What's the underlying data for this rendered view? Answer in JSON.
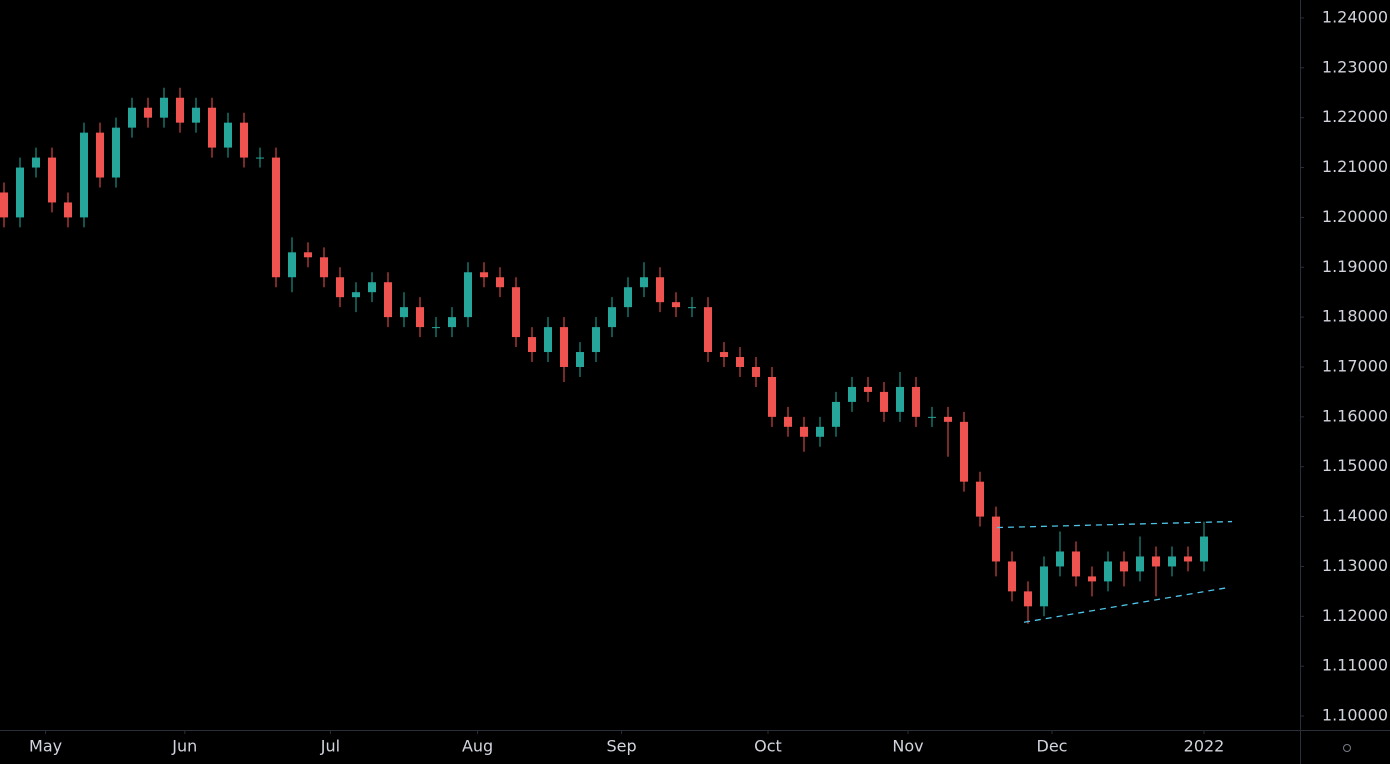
{
  "chart_data": {
    "type": "candlestick",
    "x": [
      0,
      1,
      2,
      3,
      4,
      5,
      6,
      7,
      8,
      9,
      10,
      11,
      12,
      13,
      14,
      15,
      16,
      17,
      18,
      19,
      20,
      21,
      22,
      23,
      24,
      25,
      26,
      27,
      28,
      29,
      30,
      31,
      32,
      33,
      34,
      35,
      36,
      37,
      38,
      39,
      40,
      41,
      42,
      43,
      44,
      45,
      46,
      47,
      48,
      49,
      50,
      51,
      52,
      53,
      54,
      55,
      56,
      57,
      58,
      59,
      60,
      61,
      62,
      63,
      64,
      65,
      66,
      67,
      68,
      69,
      70,
      71,
      72,
      73,
      74,
      75
    ],
    "open": [
      1.205,
      1.2,
      1.21,
      1.212,
      1.203,
      1.2,
      1.217,
      1.208,
      1.218,
      1.222,
      1.22,
      1.224,
      1.219,
      1.222,
      1.214,
      1.219,
      1.212,
      1.212,
      1.188,
      1.193,
      1.192,
      1.188,
      1.184,
      1.185,
      1.187,
      1.18,
      1.182,
      1.178,
      1.178,
      1.18,
      1.189,
      1.188,
      1.186,
      1.176,
      1.173,
      1.178,
      1.17,
      1.173,
      1.178,
      1.182,
      1.186,
      1.188,
      1.183,
      1.182,
      1.182,
      1.173,
      1.172,
      1.17,
      1.168,
      1.16,
      1.158,
      1.156,
      1.158,
      1.163,
      1.166,
      1.165,
      1.161,
      1.166,
      1.16,
      1.16,
      1.159,
      1.147,
      1.14,
      1.131,
      1.125,
      1.122,
      1.13,
      1.133,
      1.128,
      1.127,
      1.131,
      1.129,
      1.132,
      1.13,
      1.132,
      1.131
    ],
    "high": [
      1.207,
      1.212,
      1.214,
      1.214,
      1.205,
      1.219,
      1.219,
      1.22,
      1.224,
      1.224,
      1.226,
      1.226,
      1.224,
      1.224,
      1.221,
      1.221,
      1.214,
      1.214,
      1.196,
      1.195,
      1.194,
      1.19,
      1.187,
      1.189,
      1.189,
      1.185,
      1.184,
      1.18,
      1.182,
      1.191,
      1.191,
      1.19,
      1.188,
      1.178,
      1.18,
      1.18,
      1.175,
      1.18,
      1.184,
      1.188,
      1.191,
      1.19,
      1.185,
      1.184,
      1.184,
      1.175,
      1.174,
      1.172,
      1.17,
      1.162,
      1.16,
      1.16,
      1.165,
      1.168,
      1.168,
      1.167,
      1.169,
      1.168,
      1.162,
      1.162,
      1.161,
      1.149,
      1.142,
      1.133,
      1.127,
      1.132,
      1.137,
      1.135,
      1.13,
      1.133,
      1.133,
      1.136,
      1.134,
      1.134,
      1.134,
      1.139
    ],
    "low": [
      1.198,
      1.198,
      1.208,
      1.201,
      1.198,
      1.198,
      1.206,
      1.206,
      1.216,
      1.218,
      1.218,
      1.217,
      1.217,
      1.212,
      1.212,
      1.21,
      1.21,
      1.186,
      1.185,
      1.19,
      1.186,
      1.182,
      1.181,
      1.183,
      1.178,
      1.178,
      1.176,
      1.176,
      1.176,
      1.178,
      1.186,
      1.184,
      1.174,
      1.171,
      1.171,
      1.167,
      1.168,
      1.171,
      1.176,
      1.18,
      1.184,
      1.181,
      1.18,
      1.18,
      1.171,
      1.17,
      1.168,
      1.166,
      1.158,
      1.156,
      1.153,
      1.154,
      1.156,
      1.161,
      1.163,
      1.159,
      1.159,
      1.158,
      1.158,
      1.152,
      1.145,
      1.138,
      1.128,
      1.123,
      1.1185,
      1.12,
      1.128,
      1.126,
      1.124,
      1.125,
      1.126,
      1.127,
      1.124,
      1.128,
      1.129,
      1.129
    ],
    "close": [
      1.2,
      1.21,
      1.212,
      1.203,
      1.2,
      1.217,
      1.208,
      1.218,
      1.222,
      1.22,
      1.224,
      1.219,
      1.222,
      1.214,
      1.219,
      1.212,
      1.212,
      1.188,
      1.193,
      1.192,
      1.188,
      1.184,
      1.185,
      1.187,
      1.18,
      1.182,
      1.178,
      1.178,
      1.18,
      1.189,
      1.188,
      1.186,
      1.176,
      1.173,
      1.178,
      1.17,
      1.173,
      1.178,
      1.182,
      1.186,
      1.188,
      1.183,
      1.182,
      1.182,
      1.173,
      1.172,
      1.17,
      1.168,
      1.16,
      1.158,
      1.156,
      1.158,
      1.163,
      1.166,
      1.165,
      1.161,
      1.166,
      1.16,
      1.16,
      1.159,
      1.147,
      1.14,
      1.131,
      1.125,
      1.122,
      1.13,
      1.133,
      1.128,
      1.127,
      1.131,
      1.129,
      1.132,
      1.13,
      1.132,
      1.131,
      1.136
    ],
    "up_color": "#26a69a",
    "down_color": "#ef5350",
    "xlim": [
      -0.25,
      81
    ],
    "ylim": [
      1.0972,
      1.2436
    ],
    "xticks": [
      {
        "value": 2.6,
        "label": "May"
      },
      {
        "value": 11.3,
        "label": "Jun"
      },
      {
        "value": 20.4,
        "label": "Jul"
      },
      {
        "value": 29.6,
        "label": "Aug"
      },
      {
        "value": 38.6,
        "label": "Sep"
      },
      {
        "value": 47.75,
        "label": "Oct"
      },
      {
        "value": 56.5,
        "label": "Nov"
      },
      {
        "value": 65.5,
        "label": "Dec"
      },
      {
        "value": 75,
        "label": "2022"
      }
    ],
    "yticks": [
      {
        "value": 1.1,
        "label": "1.10000"
      },
      {
        "value": 1.11,
        "label": "1.11000"
      },
      {
        "value": 1.12,
        "label": "1.12000"
      },
      {
        "value": 1.13,
        "label": "1.13000"
      },
      {
        "value": 1.14,
        "label": "1.14000"
      },
      {
        "value": 1.15,
        "label": "1.15000"
      },
      {
        "value": 1.16,
        "label": "1.16000"
      },
      {
        "value": 1.17,
        "label": "1.17000"
      },
      {
        "value": 1.18,
        "label": "1.18000"
      },
      {
        "value": 1.19,
        "label": "1.19000"
      },
      {
        "value": 1.2,
        "label": "1.20000"
      },
      {
        "value": 1.21,
        "label": "1.21000"
      },
      {
        "value": 1.22,
        "label": "1.22000"
      },
      {
        "value": 1.23,
        "label": "1.23000"
      },
      {
        "value": 1.24,
        "label": "1.24000"
      }
    ],
    "trendlines": [
      {
        "x": [
          62.06,
          76.75
        ],
        "y": [
          1.1378,
          1.139
        ]
      },
      {
        "x": [
          63.75,
          76.56
        ],
        "y": [
          1.1188,
          1.1258
        ]
      }
    ],
    "trendline_color": "#4fc3e8"
  }
}
